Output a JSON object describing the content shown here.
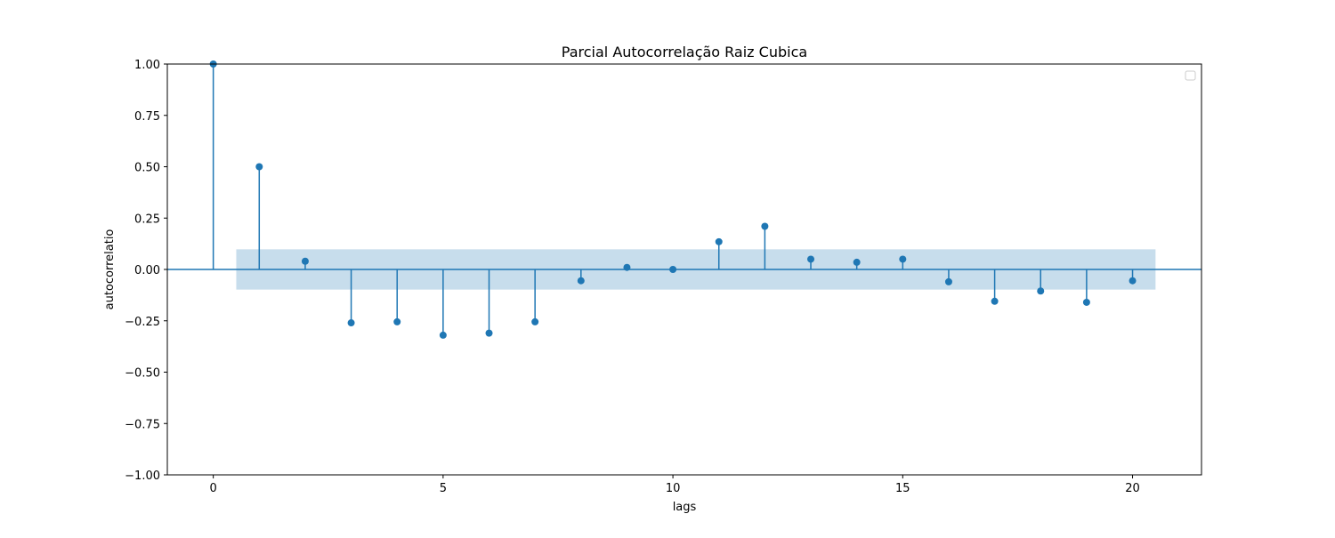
{
  "chart_data": {
    "type": "stem",
    "title": "Parcial Autocorrelação Raiz Cubica",
    "xlabel": "lags",
    "ylabel": "autocorrelatio",
    "xlim": [
      -1,
      21.5
    ],
    "ylim": [
      -1.0,
      1.0
    ],
    "xticks": [
      0,
      5,
      10,
      15,
      20
    ],
    "yticks": [
      -1.0,
      -0.75,
      -0.5,
      -0.25,
      0.0,
      0.25,
      0.5,
      0.75,
      1.0
    ],
    "ytick_labels": [
      "−1.00",
      "−0.75",
      "−0.50",
      "−0.25",
      "0.00",
      "0.25",
      "0.50",
      "0.75",
      "1.00"
    ],
    "xtick_labels": [
      "0",
      "5",
      "10",
      "15",
      "20"
    ],
    "lags": [
      0,
      1,
      2,
      3,
      4,
      5,
      6,
      7,
      8,
      9,
      10,
      11,
      12,
      13,
      14,
      15,
      16,
      17,
      18,
      19,
      20
    ],
    "values": [
      1.0,
      0.5,
      0.04,
      -0.26,
      -0.255,
      -0.32,
      -0.31,
      -0.255,
      -0.055,
      0.01,
      0.0,
      0.135,
      0.21,
      0.05,
      0.035,
      0.05,
      -0.06,
      -0.155,
      -0.105,
      -0.16,
      -0.055
    ],
    "confidence_band": {
      "x_range": [
        0.5,
        20.5
      ],
      "lower": -0.098,
      "upper": 0.098
    },
    "grid": false,
    "legend": {
      "position": "top-right",
      "entries": []
    },
    "colors": {
      "stem": "#1f77b4",
      "band": "#1f77b4",
      "band_opacity": 0.25
    }
  }
}
